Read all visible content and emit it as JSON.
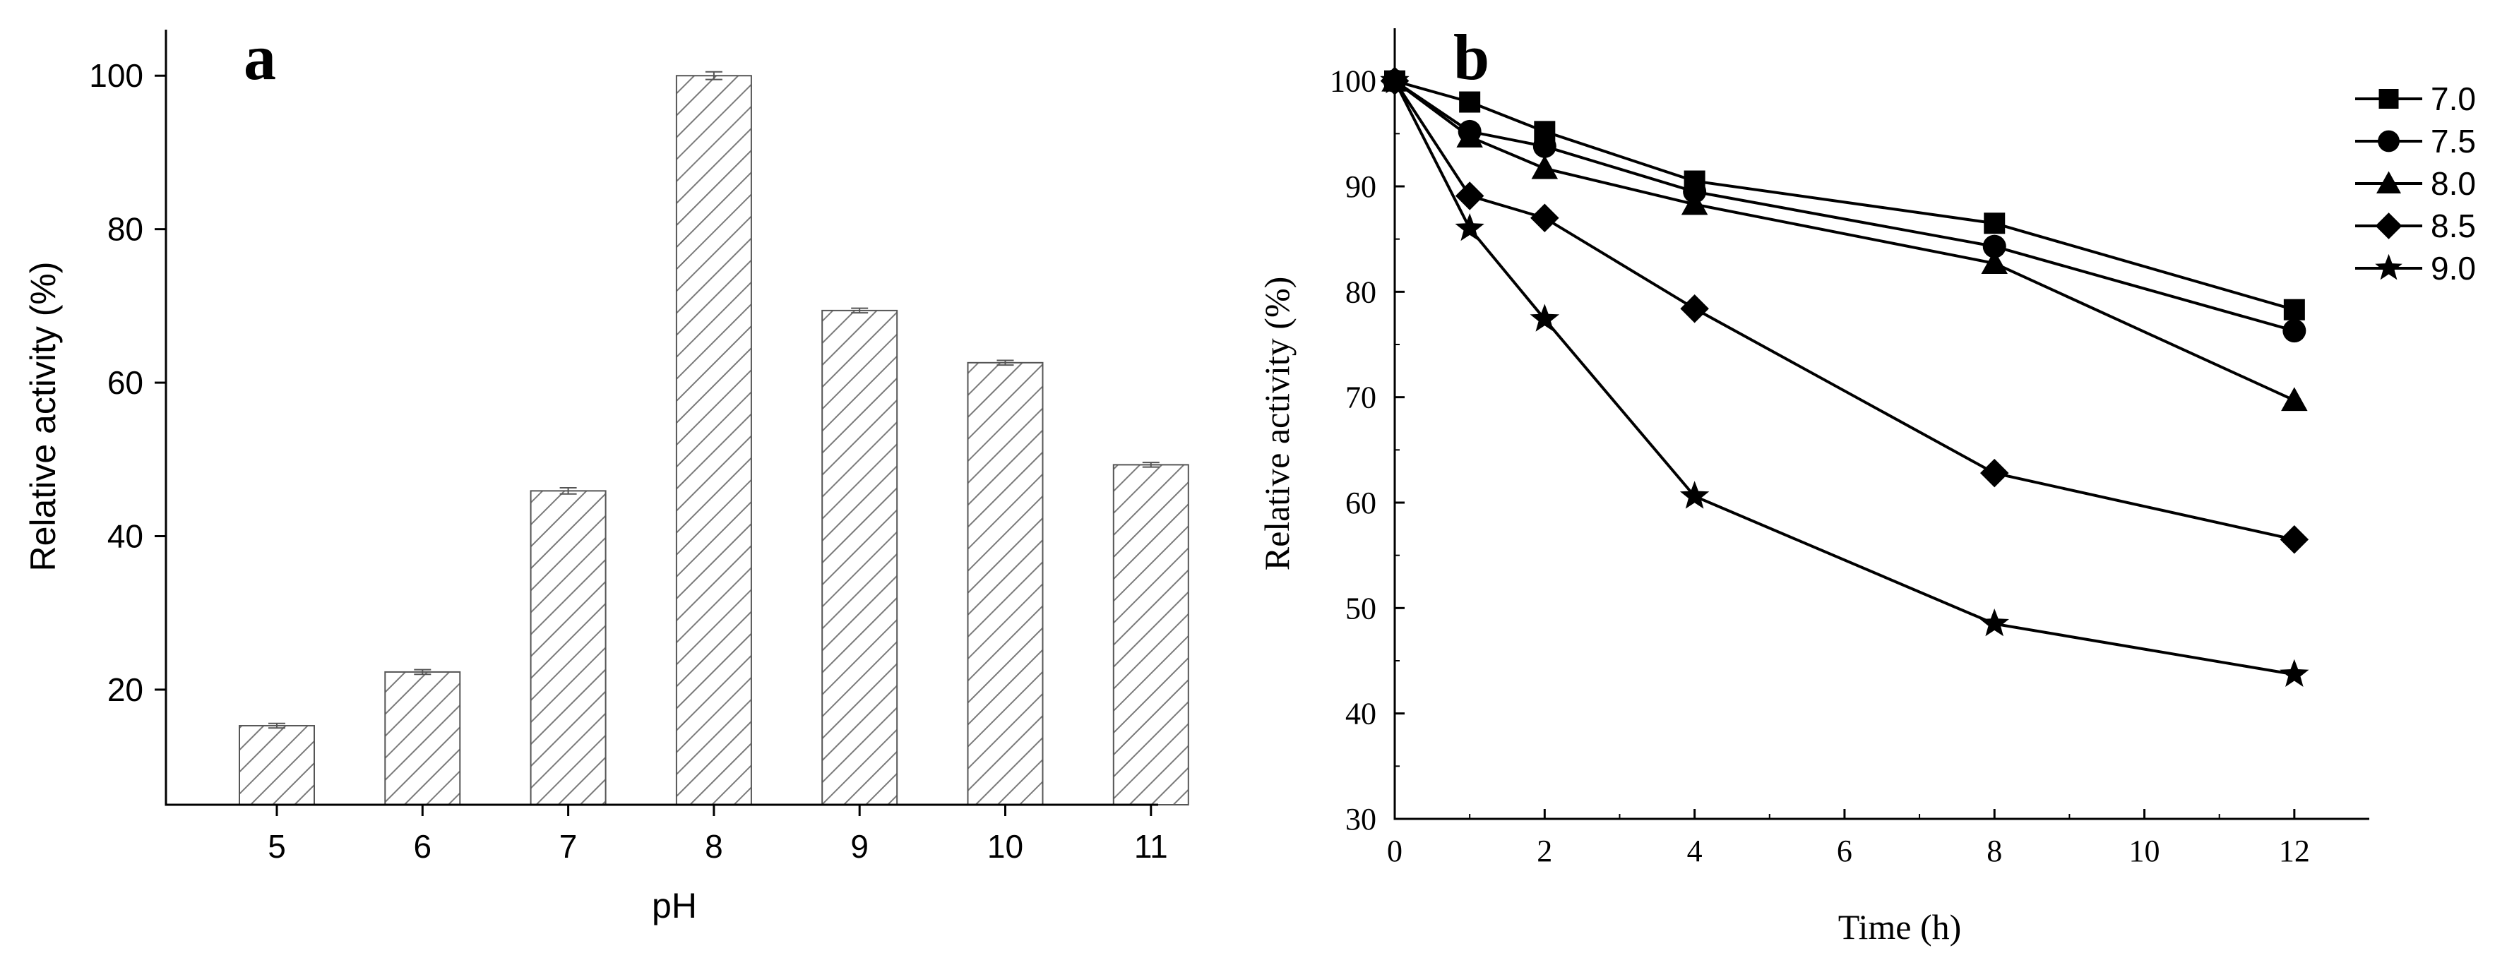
{
  "chart_data": [
    {
      "type": "bar",
      "panel_label": "a",
      "xlabel": "pH",
      "ylabel": "Relative activity (%)",
      "categories": [
        "5",
        "6",
        "7",
        "8",
        "9",
        "10",
        "11"
      ],
      "values": [
        15.3,
        22.3,
        45.9,
        100.0,
        69.4,
        62.6,
        49.3
      ],
      "errors": [
        0.3,
        0.3,
        0.4,
        0.5,
        0.3,
        0.3,
        0.3
      ],
      "ylim": [
        5,
        106
      ],
      "yticks": [
        "20",
        "40",
        "60",
        "80",
        "100"
      ],
      "ytick_values": [
        20,
        40,
        60,
        80,
        100
      ],
      "fill_pattern": "diagonal-hatch"
    },
    {
      "type": "line",
      "panel_label": "b",
      "xlabel": "Time (h)",
      "ylabel": "Relative activity (%)",
      "x": [
        0,
        1,
        2,
        4,
        8,
        12
      ],
      "xlim": [
        0,
        13
      ],
      "ylim": [
        30,
        105
      ],
      "xticks": [
        "0",
        "2",
        "4",
        "6",
        "8",
        "10",
        "12"
      ],
      "xtick_values": [
        0,
        2,
        4,
        6,
        8,
        10,
        12
      ],
      "yticks": [
        "30",
        "40",
        "50",
        "60",
        "70",
        "80",
        "90",
        "100"
      ],
      "ytick_values": [
        30,
        40,
        50,
        60,
        70,
        80,
        90,
        100
      ],
      "legend_position": "top-right",
      "series": [
        {
          "name": "7.0",
          "marker": "square",
          "values": [
            100,
            98.0,
            95.2,
            90.5,
            86.5,
            78.3
          ]
        },
        {
          "name": "7.5",
          "marker": "circle",
          "values": [
            100,
            95.2,
            93.8,
            89.5,
            84.3,
            76.3
          ]
        },
        {
          "name": "8.0",
          "marker": "triangle",
          "values": [
            100,
            94.7,
            91.7,
            88.3,
            82.7,
            69.7
          ]
        },
        {
          "name": "8.5",
          "marker": "diamond",
          "values": [
            100,
            89.1,
            87.0,
            78.4,
            62.8,
            56.5
          ]
        },
        {
          "name": "9.0",
          "marker": "star",
          "values": [
            100,
            86.0,
            77.4,
            60.6,
            48.5,
            43.7
          ]
        }
      ]
    }
  ]
}
